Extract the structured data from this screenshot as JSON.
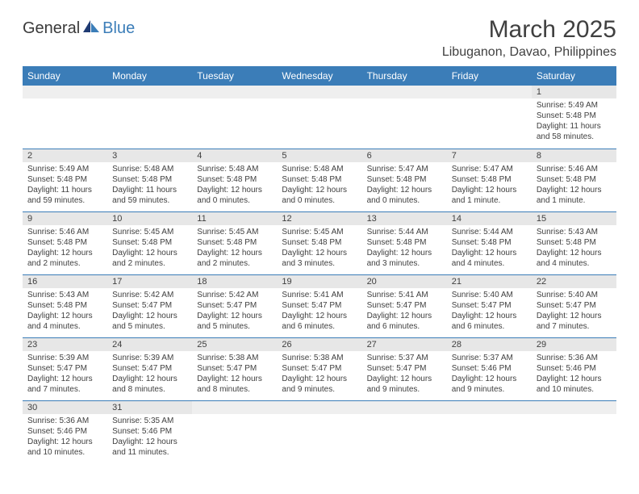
{
  "logo": {
    "text_a": "General",
    "text_b": "Blue"
  },
  "title": "March 2025",
  "location": "Libuganon, Davao, Philippines",
  "colors": {
    "header_bg": "#3b7db8",
    "header_fg": "#ffffff",
    "daynum_bg": "#e7e7e7",
    "divider": "#3b7db8",
    "text": "#404040"
  },
  "weekdays": [
    "Sunday",
    "Monday",
    "Tuesday",
    "Wednesday",
    "Thursday",
    "Friday",
    "Saturday"
  ],
  "weeks": [
    [
      null,
      null,
      null,
      null,
      null,
      null,
      {
        "d": "1",
        "sr": "Sunrise: 5:49 AM",
        "ss": "Sunset: 5:48 PM",
        "dl": "Daylight: 11 hours and 58 minutes."
      }
    ],
    [
      {
        "d": "2",
        "sr": "Sunrise: 5:49 AM",
        "ss": "Sunset: 5:48 PM",
        "dl": "Daylight: 11 hours and 59 minutes."
      },
      {
        "d": "3",
        "sr": "Sunrise: 5:48 AM",
        "ss": "Sunset: 5:48 PM",
        "dl": "Daylight: 11 hours and 59 minutes."
      },
      {
        "d": "4",
        "sr": "Sunrise: 5:48 AM",
        "ss": "Sunset: 5:48 PM",
        "dl": "Daylight: 12 hours and 0 minutes."
      },
      {
        "d": "5",
        "sr": "Sunrise: 5:48 AM",
        "ss": "Sunset: 5:48 PM",
        "dl": "Daylight: 12 hours and 0 minutes."
      },
      {
        "d": "6",
        "sr": "Sunrise: 5:47 AM",
        "ss": "Sunset: 5:48 PM",
        "dl": "Daylight: 12 hours and 0 minutes."
      },
      {
        "d": "7",
        "sr": "Sunrise: 5:47 AM",
        "ss": "Sunset: 5:48 PM",
        "dl": "Daylight: 12 hours and 1 minute."
      },
      {
        "d": "8",
        "sr": "Sunrise: 5:46 AM",
        "ss": "Sunset: 5:48 PM",
        "dl": "Daylight: 12 hours and 1 minute."
      }
    ],
    [
      {
        "d": "9",
        "sr": "Sunrise: 5:46 AM",
        "ss": "Sunset: 5:48 PM",
        "dl": "Daylight: 12 hours and 2 minutes."
      },
      {
        "d": "10",
        "sr": "Sunrise: 5:45 AM",
        "ss": "Sunset: 5:48 PM",
        "dl": "Daylight: 12 hours and 2 minutes."
      },
      {
        "d": "11",
        "sr": "Sunrise: 5:45 AM",
        "ss": "Sunset: 5:48 PM",
        "dl": "Daylight: 12 hours and 2 minutes."
      },
      {
        "d": "12",
        "sr": "Sunrise: 5:45 AM",
        "ss": "Sunset: 5:48 PM",
        "dl": "Daylight: 12 hours and 3 minutes."
      },
      {
        "d": "13",
        "sr": "Sunrise: 5:44 AM",
        "ss": "Sunset: 5:48 PM",
        "dl": "Daylight: 12 hours and 3 minutes."
      },
      {
        "d": "14",
        "sr": "Sunrise: 5:44 AM",
        "ss": "Sunset: 5:48 PM",
        "dl": "Daylight: 12 hours and 4 minutes."
      },
      {
        "d": "15",
        "sr": "Sunrise: 5:43 AM",
        "ss": "Sunset: 5:48 PM",
        "dl": "Daylight: 12 hours and 4 minutes."
      }
    ],
    [
      {
        "d": "16",
        "sr": "Sunrise: 5:43 AM",
        "ss": "Sunset: 5:48 PM",
        "dl": "Daylight: 12 hours and 4 minutes."
      },
      {
        "d": "17",
        "sr": "Sunrise: 5:42 AM",
        "ss": "Sunset: 5:47 PM",
        "dl": "Daylight: 12 hours and 5 minutes."
      },
      {
        "d": "18",
        "sr": "Sunrise: 5:42 AM",
        "ss": "Sunset: 5:47 PM",
        "dl": "Daylight: 12 hours and 5 minutes."
      },
      {
        "d": "19",
        "sr": "Sunrise: 5:41 AM",
        "ss": "Sunset: 5:47 PM",
        "dl": "Daylight: 12 hours and 6 minutes."
      },
      {
        "d": "20",
        "sr": "Sunrise: 5:41 AM",
        "ss": "Sunset: 5:47 PM",
        "dl": "Daylight: 12 hours and 6 minutes."
      },
      {
        "d": "21",
        "sr": "Sunrise: 5:40 AM",
        "ss": "Sunset: 5:47 PM",
        "dl": "Daylight: 12 hours and 6 minutes."
      },
      {
        "d": "22",
        "sr": "Sunrise: 5:40 AM",
        "ss": "Sunset: 5:47 PM",
        "dl": "Daylight: 12 hours and 7 minutes."
      }
    ],
    [
      {
        "d": "23",
        "sr": "Sunrise: 5:39 AM",
        "ss": "Sunset: 5:47 PM",
        "dl": "Daylight: 12 hours and 7 minutes."
      },
      {
        "d": "24",
        "sr": "Sunrise: 5:39 AM",
        "ss": "Sunset: 5:47 PM",
        "dl": "Daylight: 12 hours and 8 minutes."
      },
      {
        "d": "25",
        "sr": "Sunrise: 5:38 AM",
        "ss": "Sunset: 5:47 PM",
        "dl": "Daylight: 12 hours and 8 minutes."
      },
      {
        "d": "26",
        "sr": "Sunrise: 5:38 AM",
        "ss": "Sunset: 5:47 PM",
        "dl": "Daylight: 12 hours and 9 minutes."
      },
      {
        "d": "27",
        "sr": "Sunrise: 5:37 AM",
        "ss": "Sunset: 5:47 PM",
        "dl": "Daylight: 12 hours and 9 minutes."
      },
      {
        "d": "28",
        "sr": "Sunrise: 5:37 AM",
        "ss": "Sunset: 5:46 PM",
        "dl": "Daylight: 12 hours and 9 minutes."
      },
      {
        "d": "29",
        "sr": "Sunrise: 5:36 AM",
        "ss": "Sunset: 5:46 PM",
        "dl": "Daylight: 12 hours and 10 minutes."
      }
    ],
    [
      {
        "d": "30",
        "sr": "Sunrise: 5:36 AM",
        "ss": "Sunset: 5:46 PM",
        "dl": "Daylight: 12 hours and 10 minutes."
      },
      {
        "d": "31",
        "sr": "Sunrise: 5:35 AM",
        "ss": "Sunset: 5:46 PM",
        "dl": "Daylight: 12 hours and 11 minutes."
      },
      null,
      null,
      null,
      null,
      null
    ]
  ]
}
